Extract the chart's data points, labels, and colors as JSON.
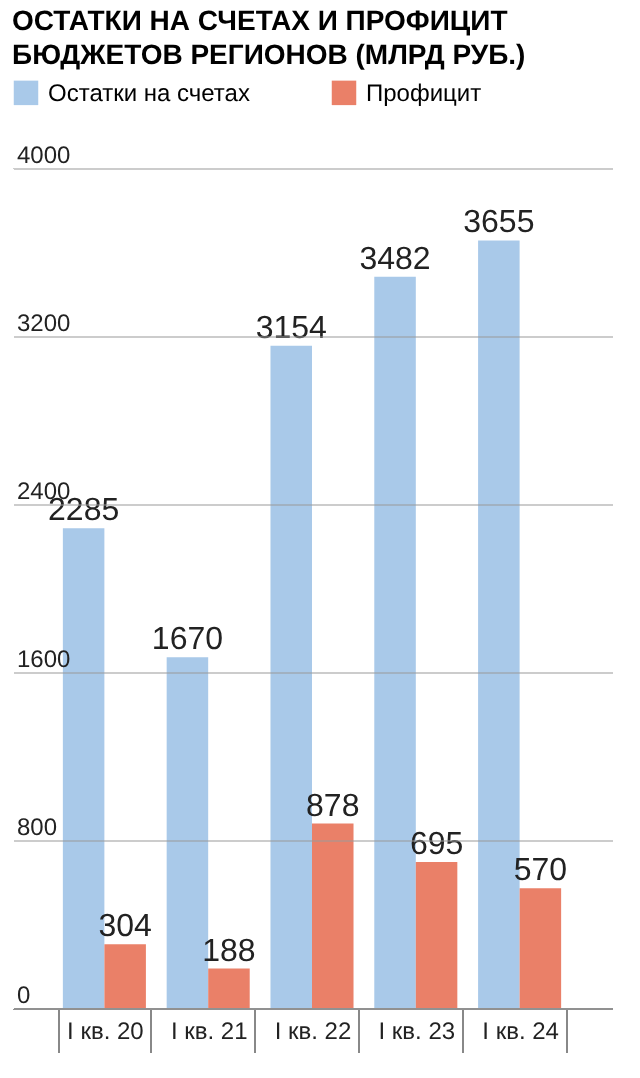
{
  "chart_data": {
    "type": "bar",
    "title": "ОСТАТКИ НА СЧЕТАХ И ПРОФИЦИТ БЮДЖЕТОВ РЕГИОНОВ (МЛРД РУБ.)",
    "categories": [
      "I кв. 20",
      "I кв. 21",
      "I кв. 22",
      "I кв. 23",
      "I кв. 24"
    ],
    "series": [
      {
        "name": "Остатки на счетах",
        "color": "#a9c9e9",
        "values": [
          2285,
          1670,
          3154,
          3482,
          3655
        ]
      },
      {
        "name": "Профицит",
        "color": "#ea8068",
        "values": [
          304,
          188,
          878,
          695,
          570
        ]
      }
    ],
    "ylim": [
      0,
      4000
    ],
    "yticks": [
      0,
      800,
      1600,
      2400,
      3200,
      4000
    ],
    "grid": "y",
    "legend": "top",
    "data_labels": true
  }
}
